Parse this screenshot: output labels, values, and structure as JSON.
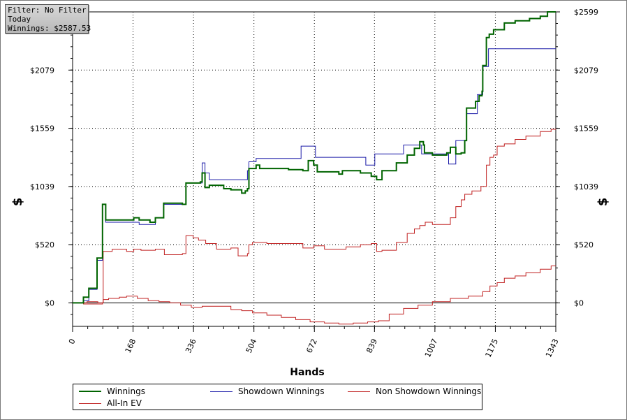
{
  "infobox": {
    "filter": "Filter: No Filter",
    "period": "Today",
    "winnings": "Winnings: $2587.53"
  },
  "chart_data": {
    "type": "line",
    "title": "",
    "xlabel": "Hands",
    "ylabel_left": "$",
    "ylabel_right": "$",
    "xlim": [
      0,
      1343
    ],
    "ylim": [
      -210,
      2599
    ],
    "x_ticks": [
      "0",
      "168",
      "336",
      "504",
      "672",
      "839",
      "1007",
      "1175",
      "1343"
    ],
    "y_ticks": [
      {
        "value": 0,
        "label": "$0"
      },
      {
        "value": 520,
        "label": "$520"
      },
      {
        "value": 1039,
        "label": "$1039"
      },
      {
        "value": 1559,
        "label": "$1559"
      },
      {
        "value": 2079,
        "label": "$2079"
      },
      {
        "value": 2599,
        "label": "$2599"
      }
    ],
    "grid": true,
    "legend_position": "bottom",
    "series": [
      {
        "name": "Winnings",
        "color": "#006400",
        "width": 2,
        "points": [
          [
            0,
            0
          ],
          [
            28,
            0
          ],
          [
            30,
            50
          ],
          [
            42,
            50
          ],
          [
            45,
            130
          ],
          [
            65,
            130
          ],
          [
            68,
            400
          ],
          [
            80,
            400
          ],
          [
            83,
            880
          ],
          [
            88,
            880
          ],
          [
            92,
            740
          ],
          [
            170,
            760
          ],
          [
            185,
            740
          ],
          [
            215,
            720
          ],
          [
            230,
            760
          ],
          [
            253,
            890
          ],
          [
            305,
            880
          ],
          [
            315,
            1070
          ],
          [
            355,
            1080
          ],
          [
            360,
            1160
          ],
          [
            368,
            1030
          ],
          [
            380,
            1050
          ],
          [
            420,
            1020
          ],
          [
            440,
            1010
          ],
          [
            470,
            980
          ],
          [
            480,
            1000
          ],
          [
            486,
            1020
          ],
          [
            490,
            1200
          ],
          [
            500,
            1200
          ],
          [
            510,
            1230
          ],
          [
            520,
            1200
          ],
          [
            600,
            1190
          ],
          [
            640,
            1180
          ],
          [
            655,
            1270
          ],
          [
            670,
            1230
          ],
          [
            680,
            1170
          ],
          [
            740,
            1150
          ],
          [
            750,
            1180
          ],
          [
            800,
            1160
          ],
          [
            830,
            1130
          ],
          [
            845,
            1100
          ],
          [
            860,
            1180
          ],
          [
            900,
            1250
          ],
          [
            930,
            1320
          ],
          [
            950,
            1380
          ],
          [
            965,
            1440
          ],
          [
            975,
            1410
          ],
          [
            978,
            1340
          ],
          [
            1000,
            1320
          ],
          [
            1040,
            1340
          ],
          [
            1045,
            1340
          ],
          [
            1050,
            1390
          ],
          [
            1065,
            1330
          ],
          [
            1080,
            1340
          ],
          [
            1090,
            1450
          ],
          [
            1095,
            1740
          ],
          [
            1110,
            1740
          ],
          [
            1120,
            1800
          ],
          [
            1130,
            1850
          ],
          [
            1138,
            1890
          ],
          [
            1140,
            2120
          ],
          [
            1150,
            2370
          ],
          [
            1158,
            2400
          ],
          [
            1170,
            2440
          ],
          [
            1200,
            2500
          ],
          [
            1230,
            2520
          ],
          [
            1270,
            2540
          ],
          [
            1300,
            2560
          ],
          [
            1320,
            2599
          ],
          [
            1343,
            2599
          ]
        ]
      },
      {
        "name": "Showdown Winnings",
        "color": "#1a1aa8",
        "width": 1,
        "points": [
          [
            0,
            0
          ],
          [
            28,
            0
          ],
          [
            30,
            20
          ],
          [
            42,
            20
          ],
          [
            45,
            120
          ],
          [
            65,
            120
          ],
          [
            68,
            380
          ],
          [
            80,
            380
          ],
          [
            83,
            880
          ],
          [
            88,
            880
          ],
          [
            92,
            720
          ],
          [
            170,
            720
          ],
          [
            185,
            700
          ],
          [
            215,
            700
          ],
          [
            230,
            760
          ],
          [
            253,
            880
          ],
          [
            305,
            880
          ],
          [
            315,
            1070
          ],
          [
            355,
            1070
          ],
          [
            360,
            1250
          ],
          [
            368,
            1160
          ],
          [
            380,
            1100
          ],
          [
            480,
            1100
          ],
          [
            486,
            1180
          ],
          [
            490,
            1260
          ],
          [
            500,
            1260
          ],
          [
            510,
            1290
          ],
          [
            630,
            1290
          ],
          [
            635,
            1400
          ],
          [
            670,
            1400
          ],
          [
            675,
            1300
          ],
          [
            810,
            1300
          ],
          [
            815,
            1230
          ],
          [
            830,
            1230
          ],
          [
            840,
            1330
          ],
          [
            915,
            1330
          ],
          [
            920,
            1410
          ],
          [
            965,
            1410
          ],
          [
            970,
            1330
          ],
          [
            1040,
            1330
          ],
          [
            1045,
            1240
          ],
          [
            1060,
            1240
          ],
          [
            1065,
            1450
          ],
          [
            1090,
            1450
          ],
          [
            1095,
            1690
          ],
          [
            1120,
            1690
          ],
          [
            1125,
            1860
          ],
          [
            1135,
            1860
          ],
          [
            1140,
            2110
          ],
          [
            1152,
            2110
          ],
          [
            1156,
            2270
          ],
          [
            1343,
            2270
          ]
        ]
      },
      {
        "name": "Non Showdown Winnings",
        "color": "#c02020",
        "width": 1,
        "points": [
          [
            0,
            0
          ],
          [
            28,
            0
          ],
          [
            30,
            -10
          ],
          [
            80,
            -10
          ],
          [
            83,
            0
          ],
          [
            85,
            460
          ],
          [
            110,
            480
          ],
          [
            150,
            460
          ],
          [
            170,
            480
          ],
          [
            190,
            470
          ],
          [
            230,
            480
          ],
          [
            255,
            430
          ],
          [
            305,
            440
          ],
          [
            315,
            600
          ],
          [
            335,
            580
          ],
          [
            350,
            560
          ],
          [
            370,
            530
          ],
          [
            400,
            480
          ],
          [
            440,
            490
          ],
          [
            460,
            420
          ],
          [
            480,
            420
          ],
          [
            486,
            440
          ],
          [
            490,
            520
          ],
          [
            500,
            540
          ],
          [
            540,
            530
          ],
          [
            600,
            530
          ],
          [
            640,
            490
          ],
          [
            670,
            510
          ],
          [
            700,
            480
          ],
          [
            740,
            480
          ],
          [
            760,
            500
          ],
          [
            800,
            520
          ],
          [
            830,
            530
          ],
          [
            845,
            460
          ],
          [
            860,
            470
          ],
          [
            900,
            540
          ],
          [
            930,
            620
          ],
          [
            950,
            660
          ],
          [
            965,
            690
          ],
          [
            980,
            720
          ],
          [
            1000,
            700
          ],
          [
            1040,
            700
          ],
          [
            1050,
            760
          ],
          [
            1065,
            860
          ],
          [
            1080,
            920
          ],
          [
            1090,
            970
          ],
          [
            1110,
            1000
          ],
          [
            1135,
            1040
          ],
          [
            1150,
            1230
          ],
          [
            1160,
            1300
          ],
          [
            1170,
            1320
          ],
          [
            1180,
            1400
          ],
          [
            1200,
            1420
          ],
          [
            1230,
            1460
          ],
          [
            1260,
            1490
          ],
          [
            1300,
            1530
          ],
          [
            1330,
            1550
          ],
          [
            1343,
            1555
          ]
        ]
      },
      {
        "name": "All-In EV",
        "color": "#c02020",
        "width": 1,
        "points": [
          [
            0,
            0
          ],
          [
            28,
            0
          ],
          [
            40,
            10
          ],
          [
            70,
            0
          ],
          [
            85,
            30
          ],
          [
            100,
            40
          ],
          [
            130,
            50
          ],
          [
            150,
            60
          ],
          [
            180,
            40
          ],
          [
            210,
            20
          ],
          [
            240,
            10
          ],
          [
            270,
            0
          ],
          [
            300,
            -20
          ],
          [
            330,
            -40
          ],
          [
            360,
            -30
          ],
          [
            400,
            -30
          ],
          [
            440,
            -60
          ],
          [
            470,
            -70
          ],
          [
            500,
            -90
          ],
          [
            540,
            -110
          ],
          [
            580,
            -130
          ],
          [
            620,
            -150
          ],
          [
            660,
            -170
          ],
          [
            700,
            -180
          ],
          [
            740,
            -190
          ],
          [
            780,
            -180
          ],
          [
            820,
            -170
          ],
          [
            850,
            -160
          ],
          [
            880,
            -100
          ],
          [
            920,
            -50
          ],
          [
            960,
            -20
          ],
          [
            1000,
            10
          ],
          [
            1050,
            40
          ],
          [
            1100,
            60
          ],
          [
            1140,
            100
          ],
          [
            1160,
            150
          ],
          [
            1180,
            180
          ],
          [
            1200,
            220
          ],
          [
            1230,
            240
          ],
          [
            1260,
            270
          ],
          [
            1300,
            300
          ],
          [
            1330,
            330
          ],
          [
            1343,
            330
          ]
        ]
      }
    ]
  }
}
